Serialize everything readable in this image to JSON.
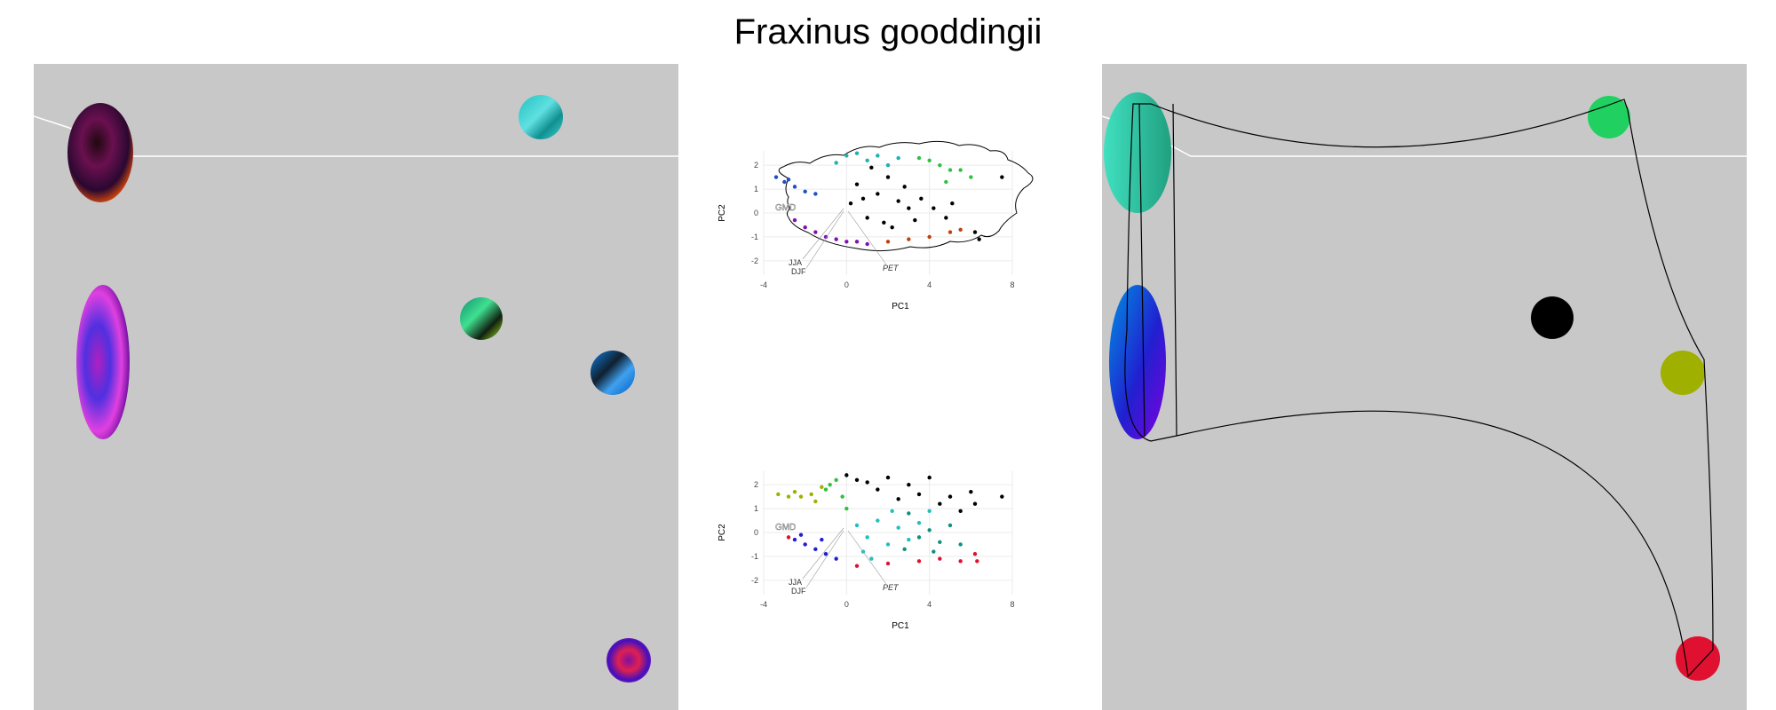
{
  "title": "Fraxinus gooddingii",
  "colors": {
    "map_background": "#c8c8c8",
    "grid": "#ebebeb",
    "point_default": "#000000"
  },
  "left_map": {
    "blobs": [
      {
        "shape": "ellipse",
        "colors": [
          "#200810",
          "#6a1050",
          "#2a0830",
          "#c04010"
        ],
        "name": "dark-red-purple-blob"
      },
      {
        "shape": "ellipse",
        "colors": [
          "#b020c0",
          "#5030e0",
          "#e040e0",
          "#7010a0"
        ],
        "name": "magenta-blob"
      },
      {
        "shape": "circle",
        "colors": [
          "#20c0c0",
          "#60e0e0",
          "#109090",
          "#40d0d0"
        ],
        "name": "cyan-blob"
      },
      {
        "shape": "circle",
        "colors": [
          "#109070",
          "#40e090",
          "#102010",
          "#a0e020"
        ],
        "name": "green-blob"
      },
      {
        "shape": "circle",
        "colors": [
          "#1080e0",
          "#102030",
          "#40a0f0",
          "#0060c0"
        ],
        "name": "blue-blob"
      },
      {
        "shape": "circle",
        "colors": [
          "#8010a0",
          "#e02050",
          "#4010c0",
          "#c020a0"
        ],
        "name": "purple-red-blob"
      }
    ]
  },
  "right_map": {
    "blobs": [
      {
        "shape": "ellipse",
        "colors": [
          "#40e0c0",
          "#20a080"
        ],
        "name": "teal-blob"
      },
      {
        "shape": "ellipse",
        "colors": [
          "#0090e0",
          "#2020d0",
          "#8000e0"
        ],
        "name": "blue-violet-blob"
      },
      {
        "shape": "circle",
        "colors": [
          "#20d060"
        ],
        "name": "green-blob"
      },
      {
        "shape": "circle",
        "colors": [
          "#000000"
        ],
        "name": "black-blob"
      },
      {
        "shape": "circle",
        "colors": [
          "#a0b000"
        ],
        "name": "olive-blob"
      },
      {
        "shape": "circle",
        "colors": [
          "#e01030"
        ],
        "name": "red-blob"
      }
    ]
  },
  "chart_data": [
    {
      "type": "scatter",
      "xlabel": "PC1",
      "ylabel": "PC2",
      "xlim": [
        -4,
        8
      ],
      "ylim": [
        -2.6,
        2.6
      ],
      "x_ticks": [
        -4,
        0,
        4,
        8
      ],
      "y_ticks": [
        -2,
        -1,
        0,
        1,
        2
      ],
      "grid": true,
      "annotations": [
        "GMD",
        "JJA",
        "DJF",
        "PET"
      ],
      "groups": [
        {
          "color": "#000000",
          "points": [
            [
              7.5,
              1.5
            ],
            [
              6.2,
              -0.8
            ],
            [
              6.4,
              -1.1
            ],
            [
              0.5,
              1.2
            ],
            [
              1.5,
              0.8
            ],
            [
              2.5,
              0.5
            ],
            [
              3,
              0.2
            ],
            [
              1,
              -0.2
            ],
            [
              2,
              1.5
            ],
            [
              0.8,
              0.6
            ],
            [
              1.8,
              -0.4
            ],
            [
              2.8,
              1.1
            ],
            [
              3.6,
              0.6
            ],
            [
              4.2,
              0.2
            ],
            [
              4.8,
              -0.2
            ],
            [
              1.2,
              1.9
            ],
            [
              0.2,
              0.4
            ],
            [
              2.2,
              -0.6
            ],
            [
              3.3,
              -0.3
            ],
            [
              5.1,
              0.4
            ]
          ]
        },
        {
          "color": "#20b0b0",
          "points": [
            [
              -0.5,
              2.1
            ],
            [
              0,
              2.4
            ],
            [
              0.5,
              2.5
            ],
            [
              1.5,
              2.4
            ],
            [
              2.5,
              2.3
            ],
            [
              1,
              2.2
            ],
            [
              2,
              2.0
            ]
          ]
        },
        {
          "color": "#30c040",
          "points": [
            [
              4,
              2.2
            ],
            [
              4.5,
              2.0
            ],
            [
              5,
              1.8
            ],
            [
              5.5,
              1.8
            ],
            [
              6,
              1.5
            ],
            [
              3.5,
              2.3
            ],
            [
              4.8,
              1.3
            ]
          ]
        },
        {
          "color": "#2050c0",
          "points": [
            [
              -3.4,
              1.5
            ],
            [
              -3,
              1.3
            ],
            [
              -2.5,
              1.1
            ],
            [
              -2,
              0.9
            ],
            [
              -1.5,
              0.8
            ],
            [
              -2.8,
              1.4
            ]
          ]
        },
        {
          "color": "#8010b0",
          "points": [
            [
              -2.5,
              -0.3
            ],
            [
              -2,
              -0.6
            ],
            [
              -1.5,
              -0.8
            ],
            [
              -1,
              -1.0
            ],
            [
              -0.5,
              -1.1
            ],
            [
              0,
              -1.2
            ],
            [
              0.5,
              -1.2
            ],
            [
              1,
              -1.3
            ]
          ]
        },
        {
          "color": "#c04010",
          "points": [
            [
              2,
              -1.2
            ],
            [
              3,
              -1.1
            ],
            [
              4,
              -1.0
            ],
            [
              5,
              -0.8
            ],
            [
              5.5,
              -0.7
            ]
          ]
        }
      ]
    },
    {
      "type": "scatter",
      "xlabel": "PC1",
      "ylabel": "PC2",
      "xlim": [
        -4,
        8
      ],
      "ylim": [
        -2.6,
        2.6
      ],
      "x_ticks": [
        -4,
        0,
        4,
        8
      ],
      "y_ticks": [
        -2,
        -1,
        0,
        1,
        2
      ],
      "grid": true,
      "annotations": [
        "GMD",
        "JJA",
        "DJF",
        "PET"
      ],
      "groups": [
        {
          "color": "#000000",
          "points": [
            [
              7.5,
              1.5
            ],
            [
              0,
              2.4
            ],
            [
              0.5,
              2.2
            ],
            [
              1,
              2.1
            ],
            [
              2,
              2.3
            ],
            [
              3,
              2.0
            ],
            [
              3.5,
              1.6
            ],
            [
              4.5,
              1.2
            ],
            [
              5,
              1.5
            ],
            [
              6,
              1.7
            ],
            [
              1.5,
              1.8
            ],
            [
              2.5,
              1.4
            ],
            [
              4,
              2.3
            ],
            [
              5.5,
              0.9
            ],
            [
              6.2,
              1.2
            ]
          ]
        },
        {
          "color": "#a0b000",
          "points": [
            [
              -3.3,
              1.6
            ],
            [
              -2.8,
              1.5
            ],
            [
              -2.2,
              1.5
            ],
            [
              -1.7,
              1.6
            ],
            [
              -1.2,
              1.9
            ],
            [
              -2.5,
              1.7
            ],
            [
              -1.5,
              1.3
            ]
          ]
        },
        {
          "color": "#30c040",
          "points": [
            [
              -0.5,
              2.2
            ],
            [
              -1,
              1.8
            ],
            [
              -0.2,
              1.5
            ],
            [
              0,
              1.0
            ],
            [
              -0.8,
              2.0
            ]
          ]
        },
        {
          "color": "#20c0c0",
          "points": [
            [
              0.5,
              0.3
            ],
            [
              1,
              -0.2
            ],
            [
              1.5,
              0.5
            ],
            [
              2,
              -0.5
            ],
            [
              2.5,
              0.2
            ],
            [
              3,
              -0.3
            ],
            [
              0.8,
              -0.8
            ],
            [
              3.5,
              0.4
            ],
            [
              4,
              0.9
            ],
            [
              2.2,
              0.9
            ],
            [
              1.2,
              -1.1
            ]
          ]
        },
        {
          "color": "#109080",
          "points": [
            [
              3,
              0.8
            ],
            [
              3.5,
              -0.2
            ],
            [
              4,
              0.1
            ],
            [
              4.5,
              -0.4
            ],
            [
              5,
              0.3
            ],
            [
              4.2,
              -0.8
            ],
            [
              5.5,
              -0.5
            ],
            [
              2.8,
              -0.7
            ]
          ]
        },
        {
          "color": "#2020d0",
          "points": [
            [
              -2.5,
              -0.3
            ],
            [
              -2,
              -0.5
            ],
            [
              -1.5,
              -0.7
            ],
            [
              -1,
              -0.9
            ],
            [
              -0.5,
              -1.1
            ],
            [
              -2.2,
              -0.1
            ],
            [
              -1.2,
              -0.3
            ]
          ]
        },
        {
          "color": "#e01030",
          "points": [
            [
              -2.8,
              -0.2
            ],
            [
              0.5,
              -1.4
            ],
            [
              2,
              -1.3
            ],
            [
              3.5,
              -1.2
            ],
            [
              4.5,
              -1.1
            ],
            [
              5.5,
              -1.2
            ],
            [
              6.2,
              -0.9
            ],
            [
              6.3,
              -1.2
            ]
          ]
        }
      ]
    }
  ]
}
